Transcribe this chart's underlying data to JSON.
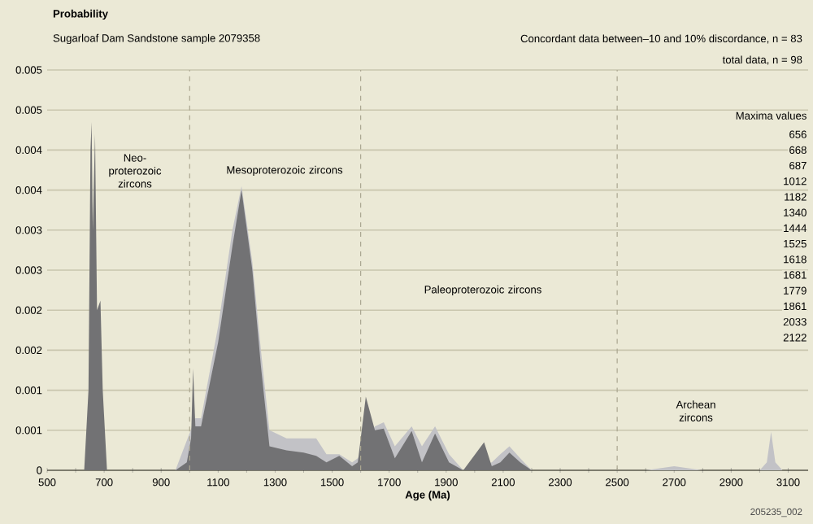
{
  "chart_data": {
    "type": "area",
    "ylabel": "Probability",
    "subtitle": "Sugarloaf Dam Sandstone sample 2079358",
    "xlabel": "Age (Ma)",
    "series": [
      {
        "color": "#c2c2c6",
        "x": [
          500,
          710,
          880,
          950,
          1020,
          1040,
          1100,
          1150,
          1182,
          1220,
          1250,
          1280,
          1340,
          1400,
          1444,
          1480,
          1525,
          1570,
          1590,
          1650,
          1681,
          1720,
          1779,
          1815,
          1861,
          1910,
          1960,
          2060,
          2090,
          2122,
          2160,
          2200,
          2600,
          2700,
          2800,
          3000,
          3025,
          3040,
          3055,
          3080,
          3170
        ],
        "values": [
          0,
          0,
          0,
          0,
          0.00065,
          0.00065,
          0.0018,
          0.003,
          0.00355,
          0.0026,
          0.0015,
          0.0005,
          0.0004,
          0.0004,
          0.0004,
          0.0002,
          0.0002,
          0.0001,
          0.00015,
          0.00055,
          0.0006,
          0.0003,
          0.00055,
          0.0003,
          0.00055,
          0.0002,
          0,
          0.0001,
          0.0002,
          0.0003,
          0.00015,
          0,
          0,
          5e-05,
          0,
          0,
          0.0001,
          0.00048,
          0.0001,
          0,
          0
        ]
      },
      {
        "color": "#727274",
        "x": [
          500,
          630,
          645,
          652,
          656,
          660,
          668,
          675,
          687,
          695,
          710,
          880,
          950,
          990,
          1005,
          1012,
          1020,
          1040,
          1100,
          1150,
          1182,
          1220,
          1250,
          1280,
          1340,
          1400,
          1444,
          1480,
          1525,
          1570,
          1590,
          1618,
          1650,
          1681,
          1720,
          1779,
          1815,
          1861,
          1910,
          1960,
          2033,
          2060,
          2090,
          2122,
          2160,
          2200
        ],
        "values": [
          0,
          0,
          0.001,
          0.004,
          0.00435,
          0.003,
          0.0042,
          0.002,
          0.00212,
          0.001,
          0,
          0,
          0,
          0.0001,
          0.0004,
          0.00127,
          0.00055,
          0.00055,
          0.0016,
          0.0028,
          0.0035,
          0.0025,
          0.0013,
          0.0003,
          0.00025,
          0.00022,
          0.00018,
          0.0001,
          0.00018,
          5e-05,
          0.0001,
          0.00092,
          0.0005,
          0.00052,
          0.00015,
          0.00049,
          0.0001,
          0.00046,
          0.0001,
          0,
          0.00035,
          5e-05,
          0.0001,
          0.00022,
          0.0001,
          0
        ]
      }
    ],
    "xlim": [
      500,
      3170
    ],
    "ylim": [
      0,
      0.005
    ],
    "xticks": [
      500,
      700,
      900,
      1100,
      1300,
      1500,
      1700,
      1900,
      2100,
      2300,
      2500,
      2700,
      2900,
      3100
    ],
    "yticks": [
      0,
      {
        "value": 0.0005,
        "label": "0.001"
      },
      {
        "value": 0.001,
        "label": "0.001"
      },
      {
        "value": 0.0015,
        "label": "0.002"
      },
      {
        "value": 0.002,
        "label": "0.002"
      },
      {
        "value": 0.0025,
        "label": "0.003"
      },
      {
        "value": 0.003,
        "label": "0.003"
      },
      {
        "value": 0.0035,
        "label": "0.004"
      },
      {
        "value": 0.004,
        "label": "0.004"
      },
      {
        "value": 0.0045,
        "label": "0.005"
      },
      {
        "value": 0.005,
        "label": "0.005"
      }
    ],
    "grid": "y",
    "ref_lines": [
      {
        "axis": "x",
        "value": 1000,
        "color": "#aaa690",
        "line_style": "dashed"
      },
      {
        "axis": "x",
        "value": 1600,
        "color": "#aaa690",
        "line_style": "dashed"
      },
      {
        "axis": "x",
        "value": 2500,
        "color": "#aaa690",
        "line_style": "dashed"
      }
    ],
    "annotations": [
      "Neo-proterozoic zircons",
      "Mesoproterozoic zircons",
      "Paleoproterozoic zircons",
      "Archean zircons",
      "Concordant data between–10 and 10% discordance, n = 83",
      "total data, n = 98",
      "Maxima values",
      "656",
      "668",
      "687",
      "1012",
      "1182",
      "1340",
      "1444",
      "1525",
      "1618",
      "1681",
      "1779",
      "1861",
      "2033",
      "2122",
      "205235_002"
    ]
  }
}
